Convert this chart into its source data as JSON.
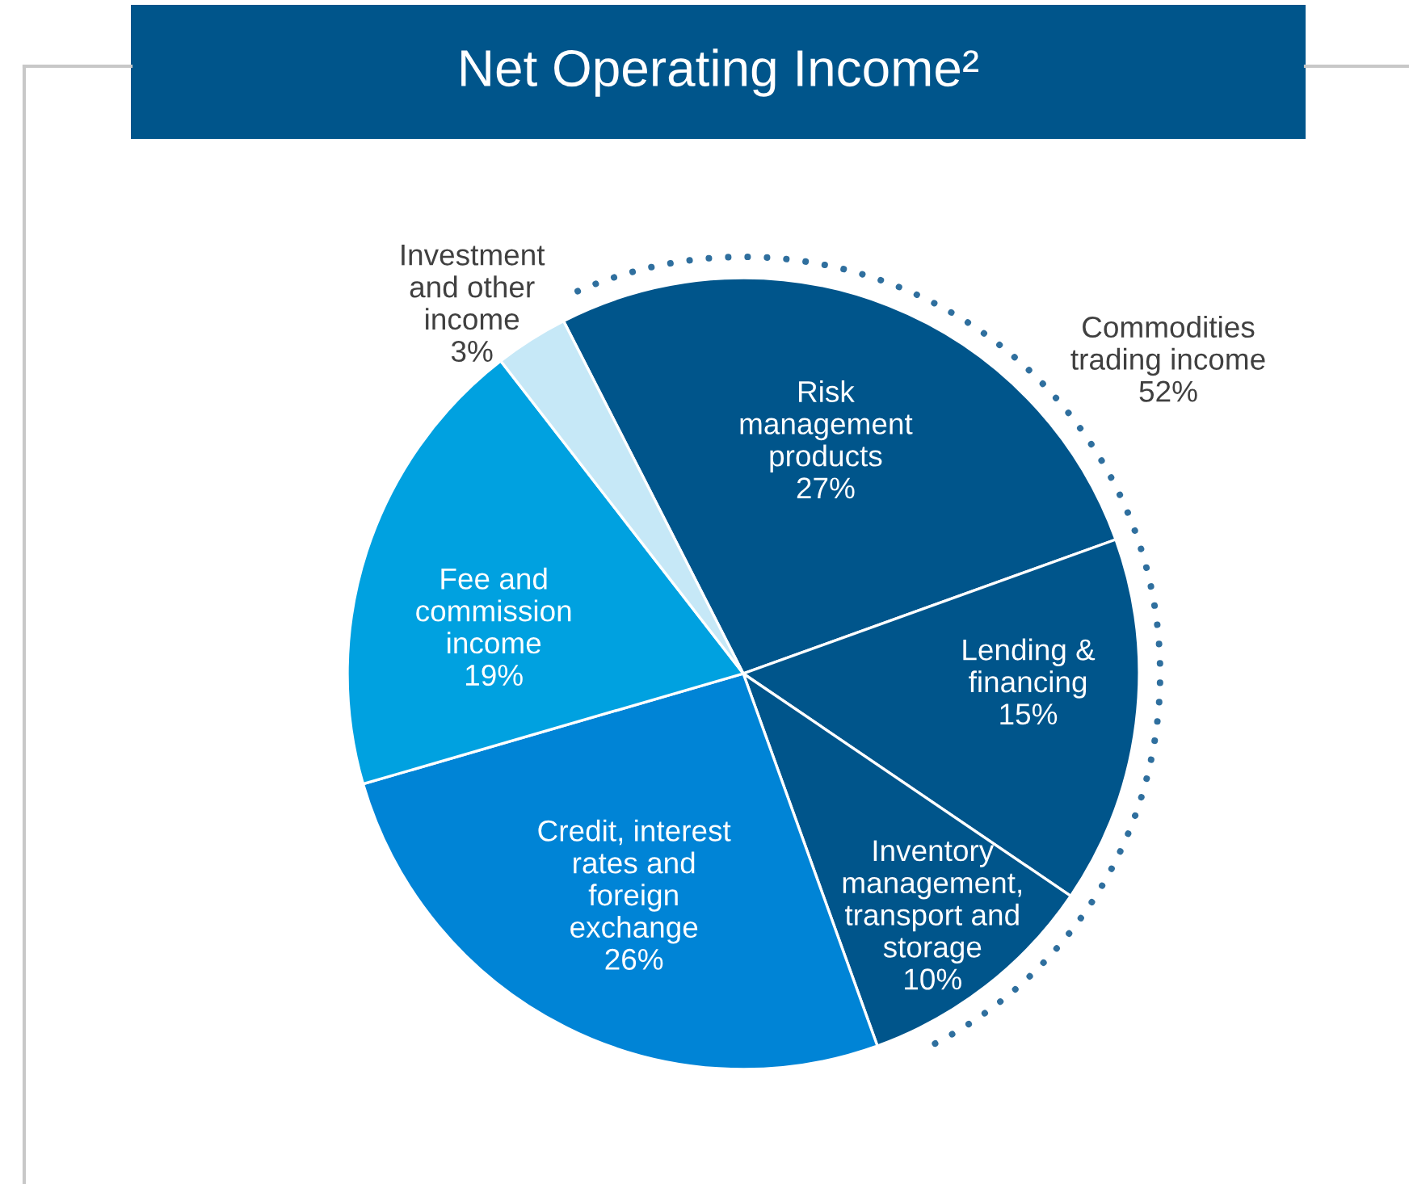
{
  "chart_data": {
    "type": "pie",
    "title": "Net Operating Income²",
    "categories": [
      "Risk\nmanagement\nproducts",
      "Lending &\nfinancing",
      "Inventory\nmanagement,\ntransport and\nstorage",
      "Credit, interest\nrates and\nforeign\nexchange",
      "Fee and\ncommission\nincome",
      "Investment\nand other\nincome"
    ],
    "values": [
      27,
      15,
      10,
      26,
      19,
      3
    ],
    "value_labels": [
      "27%",
      "15%",
      "10%",
      "26%",
      "19%",
      "3%"
    ],
    "colors": [
      "#00558b",
      "#00558b",
      "#00558b",
      "#0084d6",
      "#00a1e0",
      "#c6e8f7"
    ],
    "annotations": [
      "Commodities\ntrading income\n52%"
    ]
  }
}
